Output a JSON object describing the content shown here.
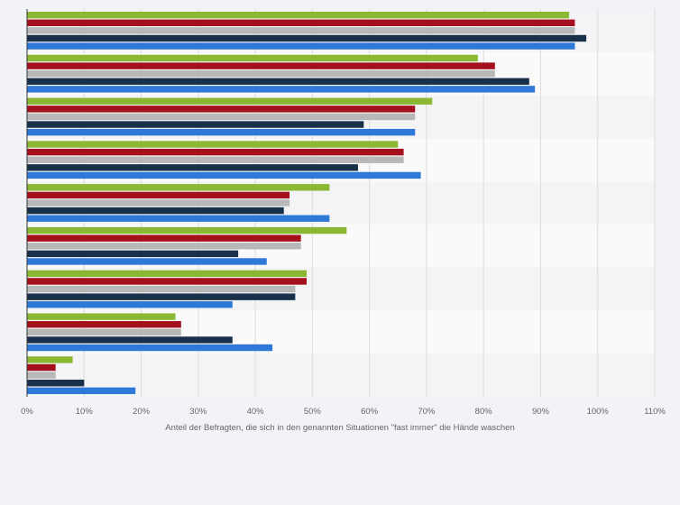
{
  "chart_data": {
    "type": "bar",
    "orientation": "horizontal",
    "xlabel": "Anteil der Befragten, die sich in den genannten Situationen \"fast immer\" die Hände waschen",
    "xlim": [
      0,
      110
    ],
    "x_ticks": [
      "0%",
      "10%",
      "20%",
      "30%",
      "40%",
      "50%",
      "60%",
      "70%",
      "80%",
      "90%",
      "100%",
      "110%"
    ],
    "grid": true,
    "legend": "none",
    "categories": [
      "",
      "",
      "",
      "",
      "",
      "",
      "",
      "",
      ""
    ],
    "series": [
      {
        "color": "#8ab833",
        "values": [
          95,
          79,
          71,
          65,
          53,
          56,
          49,
          26,
          8
        ]
      },
      {
        "color": "#a4111c",
        "values": [
          96,
          82,
          68,
          66,
          46,
          48,
          49,
          27,
          5
        ]
      },
      {
        "color": "#b8b8b8",
        "values": [
          96,
          82,
          68,
          66,
          46,
          48,
          47,
          27,
          5
        ]
      },
      {
        "color": "#18304a",
        "values": [
          98,
          88,
          59,
          58,
          45,
          37,
          47,
          36,
          10
        ]
      },
      {
        "color": "#2e78d7",
        "values": [
          96,
          89,
          68,
          69,
          53,
          42,
          36,
          43,
          19
        ]
      }
    ]
  }
}
